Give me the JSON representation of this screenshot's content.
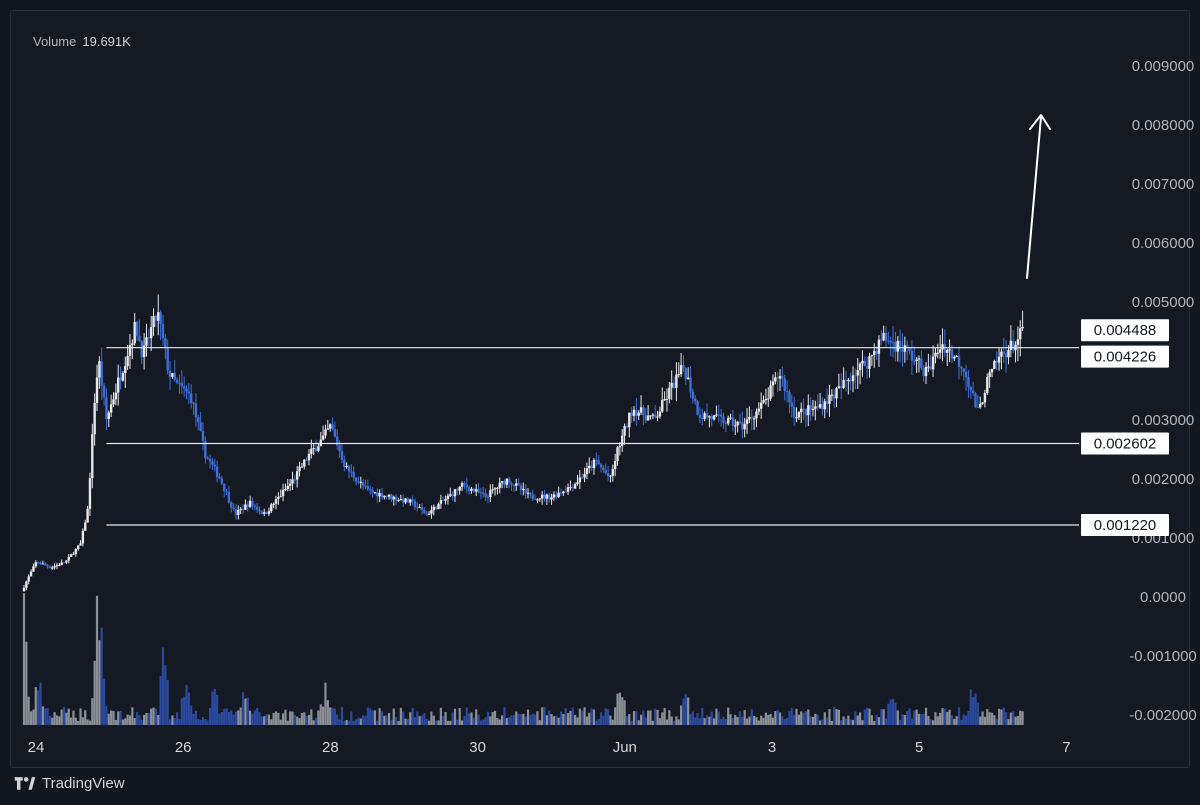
{
  "legend": {
    "label": "Volume",
    "value": "19.691K"
  },
  "footer": {
    "brand": "TradingView"
  },
  "colors": {
    "background": "#131722",
    "up": "#e8e8e8",
    "down": "#3d6fd6",
    "level_line": "#e8e8e8",
    "grid_text": "#b2b5be",
    "arrow": "#ffffff"
  },
  "chart_data": {
    "type": "candlestick",
    "title": "",
    "xlabel": "",
    "ylabel": "",
    "ylim": [
      -0.002,
      0.0095
    ],
    "y_ticks": [
      "0.009000",
      "0.008000",
      "0.007000",
      "0.006000",
      "0.005000",
      "0.003000",
      "0.002000",
      "0.001000",
      "0.0000",
      "-0.001000",
      "-0.002000"
    ],
    "x_ticks": [
      "24",
      "26",
      "28",
      "30",
      "Jun",
      "3",
      "5",
      "7"
    ],
    "horizontal_levels": [
      0.004226,
      0.002602,
      0.00122
    ],
    "price_labels": [
      "0.004488",
      "0.004226",
      "0.002602",
      "0.001220"
    ],
    "last_price": 0.004488,
    "arrow_hint": "upward arrow pointing toward 0.0080",
    "price_path": [
      [
        0.0,
        0.0001
      ],
      [
        0.2,
        0.0006
      ],
      [
        0.4,
        0.0005
      ],
      [
        0.6,
        0.0006
      ],
      [
        0.8,
        0.0009
      ],
      [
        0.9,
        0.0015
      ],
      [
        1.0,
        0.0035
      ],
      [
        1.05,
        0.004
      ],
      [
        1.15,
        0.003
      ],
      [
        1.25,
        0.0034
      ],
      [
        1.4,
        0.004
      ],
      [
        1.55,
        0.0046
      ],
      [
        1.65,
        0.0041
      ],
      [
        1.75,
        0.0045
      ],
      [
        1.85,
        0.0048
      ],
      [
        2.0,
        0.0038
      ],
      [
        2.1,
        0.0036
      ],
      [
        2.3,
        0.0034
      ],
      [
        2.5,
        0.0024
      ],
      [
        2.7,
        0.002
      ],
      [
        2.9,
        0.0014
      ],
      [
        3.1,
        0.0016
      ],
      [
        3.3,
        0.0014
      ],
      [
        3.5,
        0.0017
      ],
      [
        3.7,
        0.002
      ],
      [
        3.9,
        0.0024
      ],
      [
        4.1,
        0.0027
      ],
      [
        4.2,
        0.0029
      ],
      [
        4.4,
        0.0022
      ],
      [
        4.7,
        0.0018
      ],
      [
        5.0,
        0.0017
      ],
      [
        5.3,
        0.0016
      ],
      [
        5.5,
        0.0014
      ],
      [
        5.7,
        0.0016
      ],
      [
        6.0,
        0.0019
      ],
      [
        6.3,
        0.0017
      ],
      [
        6.6,
        0.002
      ],
      [
        6.9,
        0.0017
      ],
      [
        7.2,
        0.0017
      ],
      [
        7.5,
        0.0019
      ],
      [
        7.8,
        0.0023
      ],
      [
        8.0,
        0.002
      ],
      [
        8.1,
        0.0025
      ],
      [
        8.3,
        0.0032
      ],
      [
        8.6,
        0.003
      ],
      [
        8.85,
        0.0036
      ],
      [
        9.0,
        0.0039
      ],
      [
        9.2,
        0.0031
      ],
      [
        9.5,
        0.003
      ],
      [
        9.8,
        0.0029
      ],
      [
        10.1,
        0.0033
      ],
      [
        10.3,
        0.0038
      ],
      [
        10.5,
        0.0031
      ],
      [
        10.8,
        0.0032
      ],
      [
        11.1,
        0.0035
      ],
      [
        11.3,
        0.0038
      ],
      [
        11.5,
        0.004
      ],
      [
        11.7,
        0.0044
      ],
      [
        12.0,
        0.0042
      ],
      [
        12.3,
        0.0038
      ],
      [
        12.5,
        0.0043
      ],
      [
        12.8,
        0.0039
      ],
      [
        13.0,
        0.0031
      ],
      [
        13.1,
        0.0036
      ],
      [
        13.3,
        0.0041
      ],
      [
        13.5,
        0.0043
      ],
      [
        13.6,
        0.00449
      ]
    ],
    "volume_spikes": [
      [
        0.0,
        0.8
      ],
      [
        0.2,
        0.25
      ],
      [
        1.0,
        0.9
      ],
      [
        1.05,
        0.55
      ],
      [
        1.9,
        0.5
      ],
      [
        2.2,
        0.3
      ],
      [
        2.6,
        0.2
      ],
      [
        3.0,
        0.18
      ],
      [
        4.1,
        0.2
      ],
      [
        8.1,
        0.18
      ],
      [
        9.0,
        0.15
      ],
      [
        11.8,
        0.12
      ],
      [
        12.9,
        0.2
      ]
    ]
  }
}
